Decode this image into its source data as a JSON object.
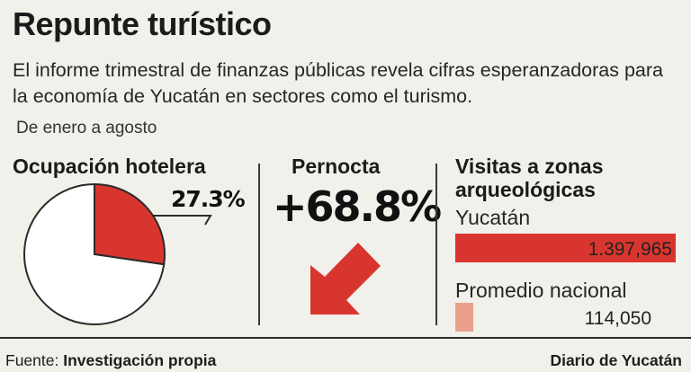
{
  "title": "Repunte turístico",
  "subtitle": "El informe trimestral de finanzas públicas revela cifras esperanzadoras para la economía de Yucatán en sectores como el turismo.",
  "period": "De enero a agosto",
  "colors": {
    "accent": "#d9352f",
    "light_accent": "#eaa08d",
    "background": "#f2f0ea",
    "text": "#1e1e1e"
  },
  "chart_data": [
    {
      "type": "pie",
      "title": "Ocupación hotelera",
      "slices": [
        {
          "label": "27.3%",
          "value": 27.3,
          "color": "#d9352f"
        },
        {
          "label": "",
          "value": 72.7,
          "color": "#ffffff"
        }
      ]
    },
    {
      "type": "table",
      "title": "Pernocta",
      "value_label": "+68.8%",
      "value": 68.8,
      "icon": "arrow-up-right-icon"
    },
    {
      "type": "bar",
      "title": "Visitas a zonas arqueológicas",
      "categories": [
        "Yucatán",
        "Promedio nacional"
      ],
      "values": [
        1397965,
        114050
      ],
      "value_labels": [
        "1.397,965",
        "114,050"
      ],
      "colors": [
        "#d9352f",
        "#eaa08d"
      ]
    }
  ],
  "footer": {
    "source_label": "Fuente: ",
    "source_value": "Investigación propia",
    "publisher": "Diario de Yucatán"
  }
}
